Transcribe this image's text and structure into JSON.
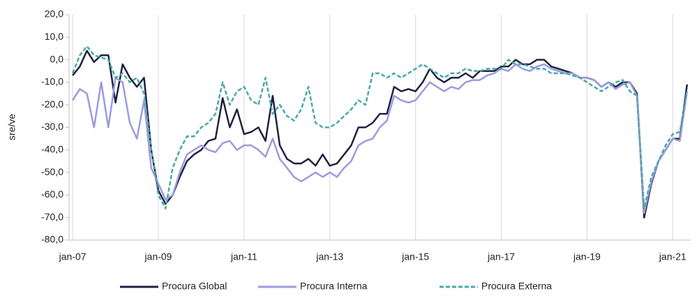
{
  "chart_data": {
    "type": "line",
    "ylabel": "sre/ve",
    "categories": [
      "jan-07",
      null,
      null,
      null,
      null,
      null,
      null,
      null,
      null,
      null,
      null,
      null,
      "jan-09",
      null,
      null,
      null,
      null,
      null,
      null,
      null,
      null,
      null,
      null,
      null,
      "jan-11",
      null,
      null,
      null,
      null,
      null,
      null,
      null,
      null,
      null,
      null,
      null,
      "jan-13",
      null,
      null,
      null,
      null,
      null,
      null,
      null,
      null,
      null,
      null,
      null,
      "jan-15",
      null,
      null,
      null,
      null,
      null,
      null,
      null,
      null,
      null,
      null,
      null,
      "jan-17",
      null,
      null,
      null,
      null,
      null,
      null,
      null,
      null,
      null,
      null,
      null,
      "jan-19",
      null,
      null,
      null,
      null,
      null,
      null,
      null,
      null,
      null,
      null,
      null,
      "jan-21",
      null,
      null
    ],
    "series": [
      {
        "name": "Procura Global",
        "color": "#1f2140",
        "dashed": false,
        "values": [
          -7,
          -3,
          4,
          -1,
          2,
          2,
          -19,
          -2,
          -8,
          -12,
          -8,
          -40,
          -58,
          -64,
          -60,
          -52,
          -45,
          -42,
          -40,
          -36,
          -35,
          -17,
          -30,
          -22,
          -33,
          -32,
          -30,
          -36,
          -16,
          -38,
          -44,
          -46,
          -46,
          -44,
          -47,
          -42,
          -47,
          -46,
          -42,
          -38,
          -30,
          -30,
          -28,
          -24,
          -24,
          -12,
          -14,
          -13,
          -14,
          -10,
          -4,
          -8,
          -10,
          -8,
          -8,
          -6,
          -8,
          -5,
          -5,
          -5,
          -3,
          -3,
          0,
          -2,
          -2,
          0,
          0,
          -3,
          -4,
          -5,
          -6,
          -8,
          -8,
          -9,
          -12,
          -10,
          -12,
          -10,
          -10,
          -15,
          -70,
          -55,
          -45,
          -40,
          -35,
          -35,
          -11
        ]
      },
      {
        "name": "Procura Interna",
        "color": "#9b9be0",
        "dashed": false,
        "values": [
          -18,
          -13,
          -15,
          -30,
          -10,
          -30,
          -8,
          -10,
          -28,
          -35,
          -18,
          -48,
          -55,
          -62,
          -60,
          -50,
          -42,
          -40,
          -38,
          -40,
          -41,
          -37,
          -36,
          -40,
          -38,
          -38,
          -40,
          -43,
          -35,
          -44,
          -48,
          -52,
          -54,
          -52,
          -50,
          -52,
          -50,
          -52,
          -48,
          -45,
          -38,
          -36,
          -35,
          -30,
          -27,
          -16,
          -18,
          -19,
          -18,
          -14,
          -10,
          -12,
          -14,
          -12,
          -13,
          -10,
          -9,
          -9,
          -7,
          -6,
          -4,
          -5,
          -2,
          -4,
          -5,
          -3,
          -2,
          -4,
          -5,
          -6,
          -6,
          -8,
          -8,
          -9,
          -12,
          -10,
          -13,
          -11,
          -10,
          -16,
          -68,
          -54,
          -45,
          -40,
          -35,
          -36,
          -14
        ]
      },
      {
        "name": "Procura Externa",
        "color": "#4aa8a8",
        "dashed": true,
        "values": [
          -6,
          2,
          6,
          2,
          1,
          0,
          -8,
          -6,
          -10,
          -8,
          -15,
          -40,
          -60,
          -66,
          -48,
          -40,
          -34,
          -34,
          -30,
          -28,
          -24,
          -10,
          -20,
          -14,
          -12,
          -18,
          -20,
          -8,
          -24,
          -20,
          -25,
          -27,
          -22,
          -12,
          -28,
          -30,
          -30,
          -28,
          -25,
          -22,
          -18,
          -20,
          -6,
          -6,
          -8,
          -6,
          -8,
          -6,
          -4,
          -2,
          -4,
          -6,
          -8,
          -6,
          -6,
          -4,
          -5,
          -5,
          -4,
          -4,
          -4,
          0,
          -2,
          -2,
          -3,
          -4,
          -4,
          -6,
          -6,
          -6,
          -7,
          -8,
          -10,
          -12,
          -14,
          -12,
          -10,
          -9,
          -14,
          -16,
          -66,
          -52,
          -45,
          -38,
          -33,
          -32,
          -14
        ]
      }
    ],
    "ylim": [
      -80,
      20
    ],
    "yticks": [
      {
        "value": -80,
        "label": "-80,0"
      },
      {
        "value": -70,
        "label": "-70,0"
      },
      {
        "value": -60,
        "label": "-60,0"
      },
      {
        "value": -50,
        "label": "-50,0"
      },
      {
        "value": -40,
        "label": "-40,0"
      },
      {
        "value": -30,
        "label": "-30,0"
      },
      {
        "value": -20,
        "label": "-20,0"
      },
      {
        "value": -10,
        "label": "-10,0"
      },
      {
        "value": 0,
        "label": "0,0"
      },
      {
        "value": 10,
        "label": "10,0"
      },
      {
        "value": 20,
        "label": "20,0"
      }
    ],
    "legend": "bottom"
  }
}
